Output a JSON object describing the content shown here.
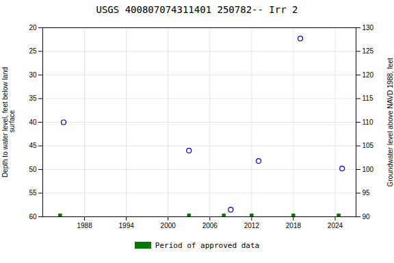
{
  "chart_data": {
    "type": "scatter",
    "title": "USGS 400807074311401 250782-- Irr 2",
    "series": [
      {
        "x": [
          1985,
          2003,
          2009,
          2013,
          2019,
          2025
        ],
        "values": [
          40.0,
          46.0,
          58.5,
          48.2,
          22.3,
          49.8
        ],
        "color": "#0000cc",
        "marker": "circle"
      },
      {
        "name": "Period of approved data",
        "x": [
          1984.5,
          2003,
          2008,
          2012,
          2018,
          2024.5
        ],
        "values": [
          59.7,
          59.7,
          59.7,
          59.7,
          59.7,
          59.7
        ],
        "color": "#007700",
        "marker": "square"
      }
    ],
    "xlim": [
      1982,
      2027
    ],
    "xticks": [
      1988,
      1994,
      2000,
      2006,
      2012,
      2018,
      2024
    ],
    "ylim": [
      60,
      20
    ],
    "yticks": [
      20,
      25,
      30,
      35,
      40,
      45,
      50,
      55,
      60
    ],
    "y2lim": [
      90,
      130
    ],
    "y2ticks": [
      90,
      95,
      100,
      105,
      110,
      115,
      120,
      125,
      130
    ],
    "ylabel": "Depth to water level, feet below land\n surface",
    "y2label": "Groundwater level above NAVD 1988, feet",
    "grid": true,
    "legend": "bottom"
  }
}
